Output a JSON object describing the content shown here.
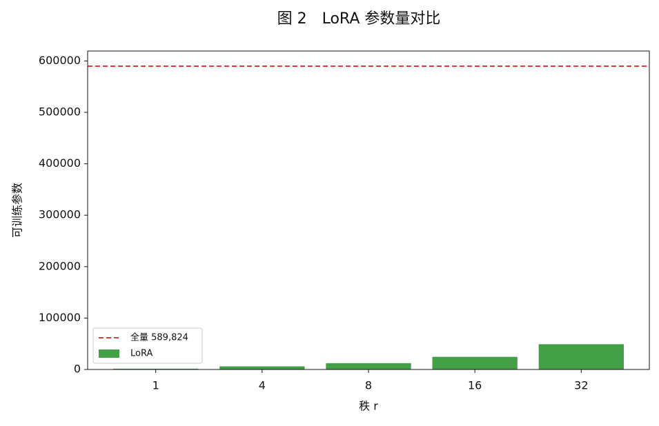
{
  "chart_data": {
    "type": "bar",
    "title": "图 2　LoRA 参数量对比",
    "xlabel": "秩 r",
    "ylabel": "可训练参数",
    "categories": [
      "1",
      "4",
      "8",
      "16",
      "32"
    ],
    "series": [
      {
        "name": "LoRA",
        "color": "#43a047",
        "values": [
          1536,
          6144,
          12288,
          24576,
          49152
        ]
      }
    ],
    "reference_line": {
      "name": "全量 589,824",
      "value": 589824,
      "color": "#e53935",
      "style": "dashed"
    },
    "ylim": [
      0,
      619315
    ],
    "yticks": [
      0,
      100000,
      200000,
      300000,
      400000,
      500000,
      600000
    ],
    "legend": "lower left"
  }
}
